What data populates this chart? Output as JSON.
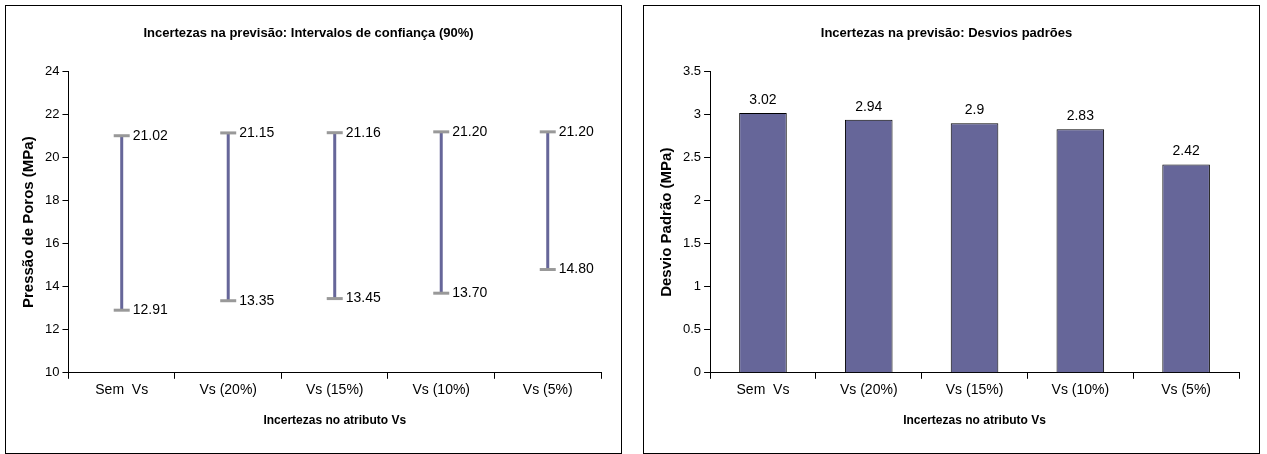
{
  "chart_data": [
    {
      "type": "bar",
      "title": "Incertezas na previsão: Intervalos de confiança (90%)",
      "xlabel": "Incertezas no atributo Vs",
      "ylabel": "Pressão de Poros (MPa)",
      "categories": [
        "Sem  Vs",
        "Vs (20%)",
        "Vs (15%)",
        "Vs (10%)",
        "Vs (5%)"
      ],
      "base": [
        12.91,
        13.35,
        13.45,
        13.7,
        14.8
      ],
      "values": [
        8.11,
        7.8,
        7.71,
        7.5,
        6.4
      ],
      "color": "#666699",
      "ylim": [
        10,
        24
      ],
      "yticks": [
        10,
        12,
        14,
        16,
        18,
        20,
        22,
        24
      ],
      "grid": false,
      "legend": false,
      "annotations": [
        {
          "text": "21.02",
          "x": "Sem  Vs",
          "y": 21.02
        },
        {
          "text": "12.91",
          "x": "Sem  Vs",
          "y": 12.91
        },
        {
          "text": "21.15",
          "x": "Vs (20%)",
          "y": 21.15
        },
        {
          "text": "13.35",
          "x": "Vs (20%)",
          "y": 13.35
        },
        {
          "text": "21.16",
          "x": "Vs (15%)",
          "y": 21.16
        },
        {
          "text": "13.45",
          "x": "Vs (15%)",
          "y": 13.45
        },
        {
          "text": "21.20",
          "x": "Vs (10%)",
          "y": 21.2
        },
        {
          "text": "13.70",
          "x": "Vs (10%)",
          "y": 13.7
        },
        {
          "text": "21.20",
          "x": "Vs (5%)",
          "y": 21.2
        },
        {
          "text": "14.80",
          "x": "Vs (5%)",
          "y": 14.8
        }
      ]
    },
    {
      "type": "bar",
      "title": "Incertezas na previsão: Desvios padrões",
      "xlabel": "Incertezas no atributo Vs",
      "ylabel": "Desvio Padrão (MPa)",
      "categories": [
        "Sem  Vs",
        "Vs (20%)",
        "Vs (15%)",
        "Vs (10%)",
        "Vs (5%)"
      ],
      "values": [
        3.02,
        2.94,
        2.9,
        2.83,
        2.42
      ],
      "color": "#666699",
      "ylim": [
        0,
        3.5
      ],
      "yticks": [
        0,
        0.5,
        1,
        1.5,
        2,
        2.5,
        3,
        3.5
      ],
      "grid": false,
      "legend": false,
      "data_labels": true
    }
  ]
}
